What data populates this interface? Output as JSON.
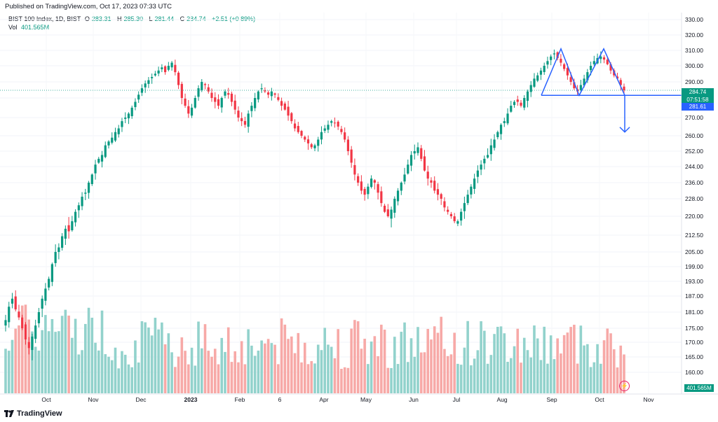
{
  "header": {
    "published": "Published on TradingView.com, Oct 17, 2023 07:33 UTC",
    "symbol": "BIST 100 Index, 1D, BIST",
    "ohlc": [
      {
        "label": "O",
        "value": "283.31"
      },
      {
        "label": "H",
        "value": "285.30"
      },
      {
        "label": "L",
        "value": "281.44"
      },
      {
        "label": "C",
        "value": "284.74"
      }
    ],
    "change": "+2.51 (+0.89%)",
    "vol_label": "Vol",
    "vol_value": "401.565M"
  },
  "price_tags": {
    "last": "284.74",
    "countdown": "07:51:58",
    "level": "281.61",
    "volume": "401.565M"
  },
  "footer": {
    "logo_text": "TradingView"
  },
  "colors": {
    "up": "#089981",
    "down": "#f23645",
    "drawing": "#2962ff",
    "up_vol": "#92d2cc",
    "down_vol": "#f7a9a7"
  },
  "chart_data": {
    "type": "candlestick",
    "y_axis_labels": [
      "330.00",
      "320.00",
      "310.00",
      "300.00",
      "290.00",
      "280.00",
      "270.00",
      "260.00",
      "252.00",
      "244.00",
      "236.00",
      "228.00",
      "220.00",
      "212.50",
      "205.00",
      "199.00",
      "193.00",
      "187.00",
      "181.00",
      "175.00",
      "170.00",
      "165.00",
      "160.00"
    ],
    "x_axis_labels": [
      "Oct",
      "Nov",
      "Dec",
      "2023",
      "Feb",
      "6",
      "Apr",
      "May",
      "Jun",
      "Jul",
      "Aug",
      "Sep",
      "Oct",
      "Nov"
    ],
    "scale": "log",
    "last_price": 284.74,
    "horizontal_level": 281.61,
    "pattern": "double-top",
    "closes": [
      178,
      183,
      186,
      182,
      179,
      175,
      171,
      168,
      172,
      176,
      181,
      186,
      190,
      194,
      200,
      205,
      207,
      212,
      215,
      214,
      218,
      222,
      225,
      229,
      231,
      236,
      240,
      245,
      248,
      250,
      255,
      257,
      259,
      262,
      264,
      268,
      270,
      272,
      275,
      278,
      282,
      286,
      289,
      291,
      293,
      295,
      297,
      299,
      296,
      300,
      302,
      296,
      288,
      280,
      276,
      272,
      275,
      280,
      286,
      290,
      288,
      284,
      280,
      278,
      276,
      280,
      284,
      282,
      278,
      274,
      270,
      268,
      266,
      272,
      276,
      280,
      284,
      286,
      284,
      282,
      284,
      282,
      279,
      276,
      274,
      271,
      268,
      264,
      262,
      260,
      258,
      256,
      254,
      255,
      258,
      262,
      264,
      266,
      268,
      267,
      265,
      262,
      258,
      252,
      246,
      240,
      236,
      232,
      230,
      234,
      238,
      236,
      231,
      226,
      222,
      220,
      223,
      228,
      232,
      236,
      240,
      245,
      250,
      252,
      254,
      248,
      242,
      238,
      236,
      232,
      230,
      228,
      224,
      222,
      220,
      218,
      218,
      222,
      226,
      230,
      234,
      238,
      242,
      245,
      248,
      250,
      255,
      258,
      262,
      266,
      268,
      272,
      276,
      278,
      278,
      276,
      280,
      284,
      288,
      292,
      294,
      297,
      300,
      303,
      306,
      308,
      305,
      302,
      298,
      294,
      290,
      286,
      284,
      288,
      292,
      296,
      300,
      303,
      305,
      306,
      304,
      301,
      297,
      294,
      292,
      288,
      284.74
    ]
  }
}
